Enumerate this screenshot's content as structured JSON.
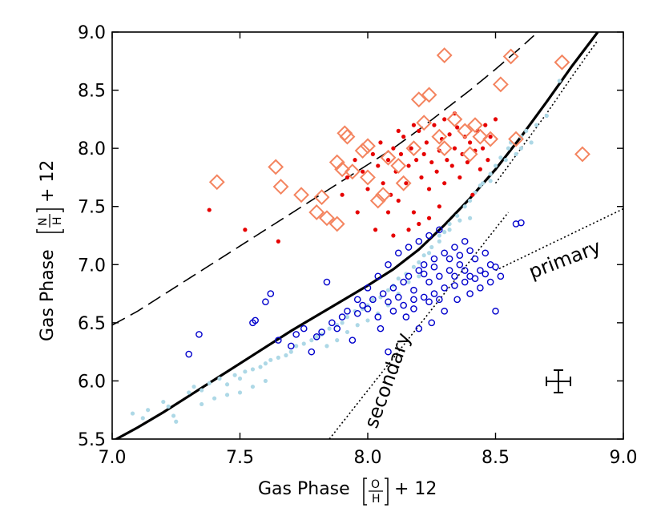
{
  "chart_data": {
    "type": "scatter",
    "xlabel_prefix": "Gas Phase",
    "ylabel_prefix": "Gas Phase",
    "xlabel_frac_top": "O",
    "xlabel_frac_bottom": "H",
    "ylabel_frac_top": "N",
    "ylabel_frac_bottom": "H",
    "label_suffix": "+ 12",
    "xlim": [
      7.0,
      9.0
    ],
    "ylim": [
      5.5,
      9.0
    ],
    "xticks": [
      7.0,
      7.5,
      8.0,
      8.5,
      9.0
    ],
    "yticks": [
      5.5,
      6.0,
      6.5,
      7.0,
      7.5,
      8.0,
      8.5,
      9.0
    ],
    "xtick_labels": [
      "7.0",
      "7.5",
      "8.0",
      "8.5",
      "9.0"
    ],
    "ytick_labels": [
      "5.5",
      "6.0",
      "6.5",
      "7.0",
      "7.5",
      "8.0",
      "8.5",
      "9.0"
    ],
    "annotations": {
      "primary": "primary",
      "secondary": "secondary"
    },
    "primary_line": [
      [
        8.5,
        6.95
      ],
      [
        9.0,
        7.48
      ]
    ],
    "secondary_line": [
      [
        7.85,
        5.5
      ],
      [
        8.55,
        7.45
      ]
    ],
    "dashed_curve": [
      [
        7.0,
        6.48
      ],
      [
        7.1,
        6.6
      ],
      [
        7.2,
        6.74
      ],
      [
        7.3,
        6.88
      ],
      [
        7.4,
        7.02
      ],
      [
        7.5,
        7.16
      ],
      [
        7.6,
        7.3
      ],
      [
        7.7,
        7.44
      ],
      [
        7.8,
        7.58
      ],
      [
        7.9,
        7.72
      ],
      [
        8.0,
        7.86
      ],
      [
        8.1,
        8.0
      ],
      [
        8.2,
        8.16
      ],
      [
        8.3,
        8.33
      ],
      [
        8.4,
        8.5
      ],
      [
        8.5,
        8.68
      ],
      [
        8.6,
        8.87
      ],
      [
        8.65,
        8.97
      ]
    ],
    "solid_curve": [
      [
        7.0,
        5.48
      ],
      [
        7.1,
        5.6
      ],
      [
        7.2,
        5.73
      ],
      [
        7.3,
        5.87
      ],
      [
        7.4,
        6.01
      ],
      [
        7.5,
        6.15
      ],
      [
        7.6,
        6.29
      ],
      [
        7.7,
        6.43
      ],
      [
        7.8,
        6.56
      ],
      [
        7.9,
        6.69
      ],
      [
        8.0,
        6.82
      ],
      [
        8.1,
        6.96
      ],
      [
        8.2,
        7.13
      ],
      [
        8.3,
        7.34
      ],
      [
        8.4,
        7.57
      ],
      [
        8.5,
        7.82
      ],
      [
        8.6,
        8.1
      ],
      [
        8.7,
        8.4
      ],
      [
        8.8,
        8.71
      ],
      [
        8.9,
        9.0
      ],
      [
        8.9,
        9.0
      ]
    ],
    "dotted_curve": [
      [
        8.5,
        7.7
      ],
      [
        8.6,
        8.0
      ],
      [
        8.7,
        8.3
      ],
      [
        8.8,
        8.62
      ],
      [
        8.9,
        8.93
      ]
    ],
    "diamonds": [
      [
        7.41,
        7.71
      ],
      [
        7.64,
        7.84
      ],
      [
        7.66,
        7.67
      ],
      [
        7.74,
        7.6
      ],
      [
        7.8,
        7.45
      ],
      [
        7.82,
        7.58
      ],
      [
        7.88,
        7.88
      ],
      [
        7.9,
        7.82
      ],
      [
        7.91,
        8.13
      ],
      [
        7.92,
        8.1
      ],
      [
        7.94,
        7.8
      ],
      [
        7.88,
        7.35
      ],
      [
        7.84,
        7.4
      ],
      [
        7.98,
        7.98
      ],
      [
        8.0,
        8.02
      ],
      [
        8.0,
        7.75
      ],
      [
        8.04,
        7.55
      ],
      [
        8.06,
        7.6
      ],
      [
        8.08,
        7.92
      ],
      [
        8.12,
        7.85
      ],
      [
        8.14,
        7.7
      ],
      [
        8.18,
        8.0
      ],
      [
        8.2,
        8.42
      ],
      [
        8.24,
        8.46
      ],
      [
        8.22,
        8.22
      ],
      [
        8.28,
        8.1
      ],
      [
        8.3,
        8.8
      ],
      [
        8.3,
        8.0
      ],
      [
        8.34,
        8.25
      ],
      [
        8.38,
        8.15
      ],
      [
        8.4,
        7.95
      ],
      [
        8.42,
        8.2
      ],
      [
        8.44,
        8.1
      ],
      [
        8.48,
        8.08
      ],
      [
        8.52,
        8.55
      ],
      [
        8.56,
        8.79
      ],
      [
        8.58,
        8.08
      ],
      [
        8.76,
        8.74
      ],
      [
        8.84,
        7.95
      ]
    ],
    "red_points": [
      [
        7.38,
        7.47
      ],
      [
        7.52,
        7.3
      ],
      [
        7.65,
        7.2
      ],
      [
        7.9,
        7.6
      ],
      [
        7.92,
        7.75
      ],
      [
        7.95,
        7.9
      ],
      [
        7.98,
        7.8
      ],
      [
        8.0,
        7.65
      ],
      [
        8.02,
        7.95
      ],
      [
        8.04,
        7.85
      ],
      [
        8.05,
        8.05
      ],
      [
        8.06,
        7.7
      ],
      [
        8.08,
        7.9
      ],
      [
        8.09,
        7.6
      ],
      [
        8.1,
        8.0
      ],
      [
        8.11,
        7.8
      ],
      [
        8.12,
        7.55
      ],
      [
        8.13,
        7.95
      ],
      [
        8.14,
        8.1
      ],
      [
        8.15,
        7.7
      ],
      [
        8.16,
        7.85
      ],
      [
        8.17,
        8.0
      ],
      [
        8.18,
        7.45
      ],
      [
        8.19,
        7.9
      ],
      [
        8.2,
        8.15
      ],
      [
        8.21,
        7.75
      ],
      [
        8.22,
        7.95
      ],
      [
        8.23,
        8.05
      ],
      [
        8.24,
        7.65
      ],
      [
        8.25,
        7.88
      ],
      [
        8.26,
        8.2
      ],
      [
        8.27,
        7.8
      ],
      [
        8.28,
        7.98
      ],
      [
        8.29,
        8.08
      ],
      [
        8.3,
        7.7
      ],
      [
        8.31,
        7.9
      ],
      [
        8.32,
        8.12
      ],
      [
        8.33,
        7.85
      ],
      [
        8.34,
        8.0
      ],
      [
        8.35,
        8.18
      ],
      [
        8.36,
        7.75
      ],
      [
        8.37,
        7.95
      ],
      [
        8.38,
        8.1
      ],
      [
        8.39,
        7.88
      ],
      [
        8.4,
        8.05
      ],
      [
        8.41,
        7.6
      ],
      [
        8.42,
        7.98
      ],
      [
        8.43,
        8.15
      ],
      [
        8.44,
        7.82
      ],
      [
        8.45,
        8.0
      ],
      [
        8.46,
        8.2
      ],
      [
        8.47,
        7.9
      ],
      [
        8.48,
        8.1
      ],
      [
        8.5,
        8.25
      ],
      [
        8.12,
        8.15
      ],
      [
        8.08,
        7.45
      ],
      [
        8.16,
        7.3
      ],
      [
        8.2,
        7.35
      ],
      [
        8.24,
        7.4
      ],
      [
        8.28,
        7.5
      ],
      [
        8.03,
        7.3
      ],
      [
        7.96,
        7.45
      ],
      [
        8.1,
        7.25
      ],
      [
        8.3,
        8.25
      ],
      [
        8.34,
        8.3
      ],
      [
        8.18,
        8.2
      ]
    ],
    "blue_rings": [
      [
        7.3,
        6.23
      ],
      [
        7.34,
        6.4
      ],
      [
        7.55,
        6.5
      ],
      [
        7.56,
        6.52
      ],
      [
        7.6,
        6.68
      ],
      [
        7.62,
        6.75
      ],
      [
        7.65,
        6.35
      ],
      [
        7.7,
        6.3
      ],
      [
        7.72,
        6.4
      ],
      [
        7.75,
        6.45
      ],
      [
        7.78,
        6.25
      ],
      [
        7.8,
        6.38
      ],
      [
        7.82,
        6.42
      ],
      [
        7.84,
        6.85
      ],
      [
        7.86,
        6.5
      ],
      [
        7.88,
        6.45
      ],
      [
        7.9,
        6.55
      ],
      [
        7.92,
        6.6
      ],
      [
        7.94,
        6.35
      ],
      [
        7.96,
        6.58
      ],
      [
        7.98,
        6.65
      ],
      [
        8.0,
        6.62
      ],
      [
        8.02,
        6.7
      ],
      [
        8.04,
        6.55
      ],
      [
        8.06,
        6.75
      ],
      [
        8.08,
        6.68
      ],
      [
        8.08,
        6.25
      ],
      [
        8.1,
        6.8
      ],
      [
        8.12,
        6.72
      ],
      [
        8.14,
        6.85
      ],
      [
        8.16,
        6.9
      ],
      [
        8.18,
        6.78
      ],
      [
        8.2,
        6.95
      ],
      [
        8.22,
        7.0
      ],
      [
        8.24,
        6.85
      ],
      [
        8.26,
        7.05
      ],
      [
        8.28,
        6.9
      ],
      [
        8.3,
        7.1
      ],
      [
        8.32,
        6.95
      ],
      [
        8.34,
        7.15
      ],
      [
        8.36,
        7.0
      ],
      [
        8.38,
        7.2
      ],
      [
        8.4,
        6.9
      ],
      [
        8.42,
        7.05
      ],
      [
        8.44,
        6.95
      ],
      [
        8.46,
        7.1
      ],
      [
        8.48,
        7.0
      ],
      [
        8.5,
        6.98
      ],
      [
        8.52,
        6.9
      ],
      [
        8.5,
        6.6
      ],
      [
        8.58,
        7.35
      ],
      [
        8.6,
        7.36
      ],
      [
        8.12,
        7.1
      ],
      [
        8.16,
        7.15
      ],
      [
        8.2,
        7.2
      ],
      [
        8.24,
        7.25
      ],
      [
        8.28,
        7.3
      ],
      [
        8.1,
        6.6
      ],
      [
        8.14,
        6.65
      ],
      [
        8.18,
        6.7
      ],
      [
        8.22,
        6.72
      ],
      [
        8.26,
        6.75
      ],
      [
        8.3,
        6.8
      ],
      [
        8.34,
        6.82
      ],
      [
        8.38,
        6.85
      ],
      [
        8.42,
        6.88
      ],
      [
        8.46,
        6.92
      ],
      [
        8.04,
        6.9
      ],
      [
        8.08,
        7.0
      ],
      [
        8.0,
        6.8
      ],
      [
        7.96,
        6.7
      ],
      [
        8.25,
        6.5
      ],
      [
        8.2,
        6.45
      ],
      [
        8.3,
        6.6
      ],
      [
        8.35,
        6.7
      ],
      [
        8.4,
        6.75
      ],
      [
        8.44,
        6.8
      ],
      [
        8.48,
        6.85
      ],
      [
        8.15,
        6.55
      ],
      [
        8.05,
        6.45
      ],
      [
        8.18,
        6.62
      ],
      [
        8.22,
        6.92
      ],
      [
        8.26,
        6.98
      ],
      [
        8.32,
        7.05
      ],
      [
        8.36,
        7.08
      ],
      [
        8.4,
        7.12
      ],
      [
        8.28,
        6.7
      ],
      [
        8.24,
        6.68
      ],
      [
        8.34,
        6.9
      ],
      [
        8.38,
        6.95
      ]
    ],
    "lightblue_points": [
      [
        7.08,
        5.72
      ],
      [
        7.12,
        5.68
      ],
      [
        7.14,
        5.75
      ],
      [
        7.2,
        5.82
      ],
      [
        7.22,
        5.78
      ],
      [
        7.24,
        5.7
      ],
      [
        7.3,
        5.9
      ],
      [
        7.32,
        5.95
      ],
      [
        7.35,
        5.92
      ],
      [
        7.38,
        5.98
      ],
      [
        7.42,
        6.02
      ],
      [
        7.45,
        5.97
      ],
      [
        7.48,
        6.05
      ],
      [
        7.5,
        6.02
      ],
      [
        7.52,
        6.08
      ],
      [
        7.55,
        6.1
      ],
      [
        7.58,
        6.12
      ],
      [
        7.6,
        6.15
      ],
      [
        7.62,
        6.18
      ],
      [
        7.65,
        6.2
      ],
      [
        7.68,
        6.22
      ],
      [
        7.7,
        6.25
      ],
      [
        7.72,
        6.3
      ],
      [
        7.75,
        6.32
      ],
      [
        7.78,
        6.35
      ],
      [
        7.8,
        6.38
      ],
      [
        7.82,
        6.4
      ],
      [
        7.85,
        6.45
      ],
      [
        7.88,
        6.48
      ],
      [
        7.9,
        6.5
      ],
      [
        7.92,
        6.55
      ],
      [
        7.95,
        6.6
      ],
      [
        7.98,
        6.62
      ],
      [
        8.0,
        6.65
      ],
      [
        8.02,
        6.7
      ],
      [
        8.05,
        6.72
      ],
      [
        8.08,
        6.78
      ],
      [
        8.1,
        6.82
      ],
      [
        8.12,
        6.88
      ],
      [
        8.15,
        6.92
      ],
      [
        8.18,
        6.98
      ],
      [
        8.2,
        7.02
      ],
      [
        8.22,
        7.08
      ],
      [
        8.25,
        7.15
      ],
      [
        8.28,
        7.2
      ],
      [
        8.3,
        7.28
      ],
      [
        8.32,
        7.35
      ],
      [
        8.35,
        7.42
      ],
      [
        8.38,
        7.5
      ],
      [
        8.4,
        7.55
      ],
      [
        8.42,
        7.62
      ],
      [
        8.45,
        7.7
      ],
      [
        8.48,
        7.78
      ],
      [
        8.5,
        7.85
      ],
      [
        8.52,
        7.92
      ],
      [
        8.55,
        8.0
      ],
      [
        8.6,
        8.1
      ],
      [
        8.62,
        8.15
      ],
      [
        8.66,
        8.2
      ],
      [
        8.7,
        8.28
      ],
      [
        8.75,
        8.58
      ],
      [
        8.48,
        7.72
      ],
      [
        8.44,
        7.68
      ],
      [
        8.4,
        7.4
      ],
      [
        8.36,
        7.38
      ],
      [
        8.32,
        7.3
      ],
      [
        8.28,
        7.25
      ],
      [
        8.24,
        7.1
      ],
      [
        8.2,
        6.9
      ],
      [
        8.16,
        6.85
      ],
      [
        8.12,
        6.75
      ],
      [
        8.08,
        6.65
      ],
      [
        8.04,
        6.58
      ],
      [
        8.0,
        6.52
      ],
      [
        7.96,
        6.48
      ],
      [
        7.92,
        6.42
      ],
      [
        7.88,
        6.35
      ],
      [
        7.84,
        6.3
      ],
      [
        7.6,
        6.0
      ],
      [
        7.55,
        5.95
      ],
      [
        7.5,
        5.9
      ],
      [
        7.45,
        5.88
      ],
      [
        7.4,
        5.85
      ],
      [
        7.35,
        5.8
      ],
      [
        7.25,
        5.65
      ],
      [
        8.56,
        8.05
      ],
      [
        8.58,
        7.95
      ],
      [
        8.54,
        7.9
      ],
      [
        8.6,
        8.0
      ],
      [
        8.64,
        8.05
      ]
    ]
  }
}
